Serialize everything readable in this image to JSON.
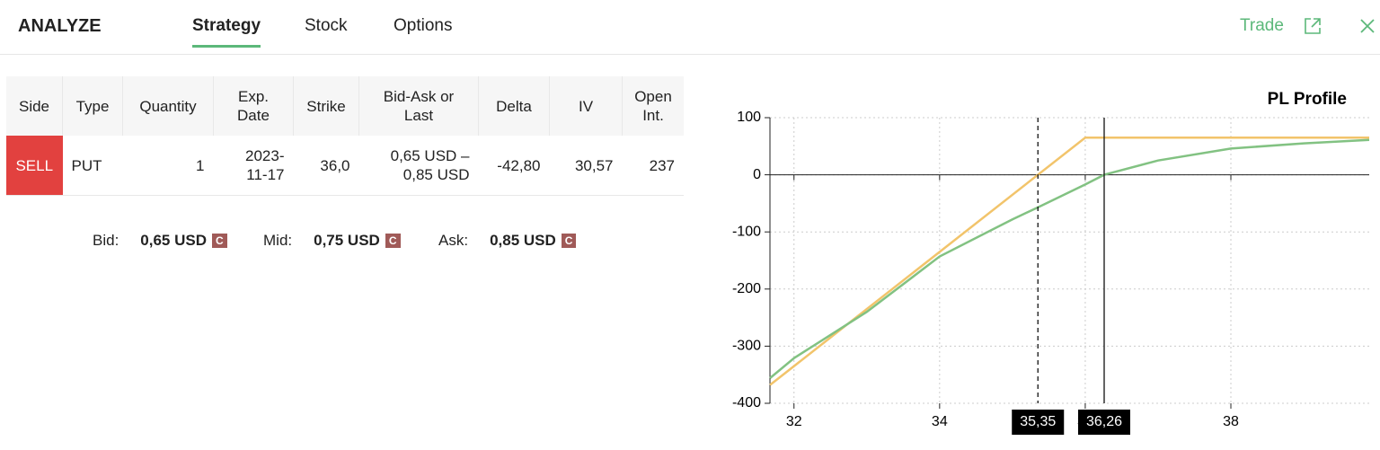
{
  "header": {
    "title": "ANALYZE",
    "tabs": [
      "Strategy",
      "Stock",
      "Options"
    ],
    "active_tab": 0,
    "trade": "Trade"
  },
  "table": {
    "headers": [
      "Side",
      "Type",
      "Quantity",
      "Exp.\nDate",
      "Strike",
      "Bid-Ask or\nLast",
      "Delta",
      "IV",
      "Open\nInt."
    ],
    "rows": [
      [
        "SELL",
        "PUT",
        "1",
        "2023-\n11-17",
        "36,0",
        "0,65 USD –\n0,85 USD",
        "-42,80",
        "30,57",
        "237"
      ]
    ]
  },
  "quotes": [
    {
      "label": "Bid:",
      "value": "0,65 USD",
      "badge": "C"
    },
    {
      "label": "Mid:",
      "value": "0,75 USD",
      "badge": "C"
    },
    {
      "label": "Ask:",
      "value": "0,85 USD",
      "badge": "C"
    }
  ],
  "chart_data": {
    "type": "line",
    "title": "PL Profile",
    "xlim": [
      31.67,
      39.9
    ],
    "ylim": [
      -400,
      100
    ],
    "xticks": [
      32,
      34,
      36,
      38
    ],
    "yticks": [
      -400,
      -300,
      -200,
      -100,
      0,
      100
    ],
    "grid": true,
    "series": [
      {
        "color": "#f2c46b",
        "x": [
          31.67,
          36,
          39.9
        ],
        "values": [
          -368,
          65,
          65
        ]
      },
      {
        "color": "#82c282",
        "x": [
          31.67,
          32,
          33,
          34,
          35,
          35.35,
          36,
          36.26,
          37,
          38,
          39,
          39.9
        ],
        "values": [
          -356,
          -321,
          -240,
          -143,
          -78,
          -57,
          -17,
          0,
          25,
          46,
          55,
          61
        ]
      }
    ],
    "markers": [
      {
        "value": 35.35,
        "label": "35,35",
        "style": "dashed"
      },
      {
        "value": 36.26,
        "label": "36,26",
        "style": "solid"
      }
    ]
  }
}
